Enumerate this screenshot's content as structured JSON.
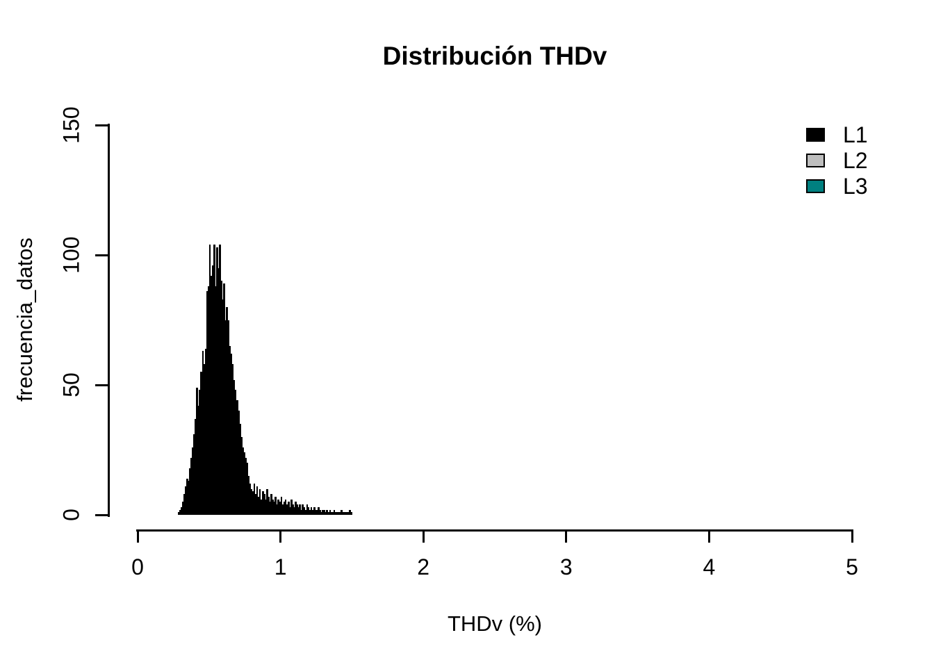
{
  "title": "Distribución THDv",
  "chart_data": {
    "type": "bar",
    "subtype": "histogram",
    "title": "Distribución THDv",
    "xlabel": "THDv (%)",
    "ylabel": "frecuencia_datos",
    "xlim": [
      0,
      5
    ],
    "ylim": [
      0,
      150
    ],
    "x_ticks": [
      0,
      1,
      2,
      3,
      4,
      5
    ],
    "y_ticks": [
      0,
      50,
      100,
      150
    ],
    "grid": false,
    "bar_color": "#000000",
    "bin_start": 0.28,
    "bin_width": 0.01,
    "bins": [
      1,
      2,
      3,
      5,
      8,
      11,
      14,
      13,
      18,
      22,
      26,
      31,
      37,
      49,
      42,
      48,
      55,
      63,
      58,
      64,
      86,
      88,
      104,
      92,
      96,
      104,
      88,
      103,
      95,
      104,
      90,
      83,
      89,
      75,
      80,
      75,
      65,
      62,
      58,
      52,
      48,
      44,
      40,
      35,
      30,
      26,
      24,
      22,
      20,
      15,
      12,
      10,
      9,
      12,
      8,
      11,
      7,
      10,
      6,
      9,
      8,
      6,
      10,
      7,
      5,
      8,
      6,
      5,
      7,
      4,
      6,
      5,
      7,
      4,
      5,
      6,
      4,
      5,
      3,
      6,
      4,
      3,
      5,
      4,
      3,
      4,
      2,
      4,
      3,
      2,
      4,
      3,
      2,
      3,
      2,
      3,
      2,
      2,
      3,
      2,
      1,
      2,
      2,
      1,
      2,
      1,
      2,
      1,
      1,
      2,
      1,
      1,
      1,
      1,
      2,
      1,
      1,
      1,
      1,
      1,
      2,
      1
    ],
    "legend": {
      "position": "topright",
      "entries": [
        {
          "label": "L1",
          "color": "#000000"
        },
        {
          "label": "L2",
          "color": "#BEBEBE"
        },
        {
          "label": "L3",
          "color": "#008080"
        }
      ]
    }
  }
}
